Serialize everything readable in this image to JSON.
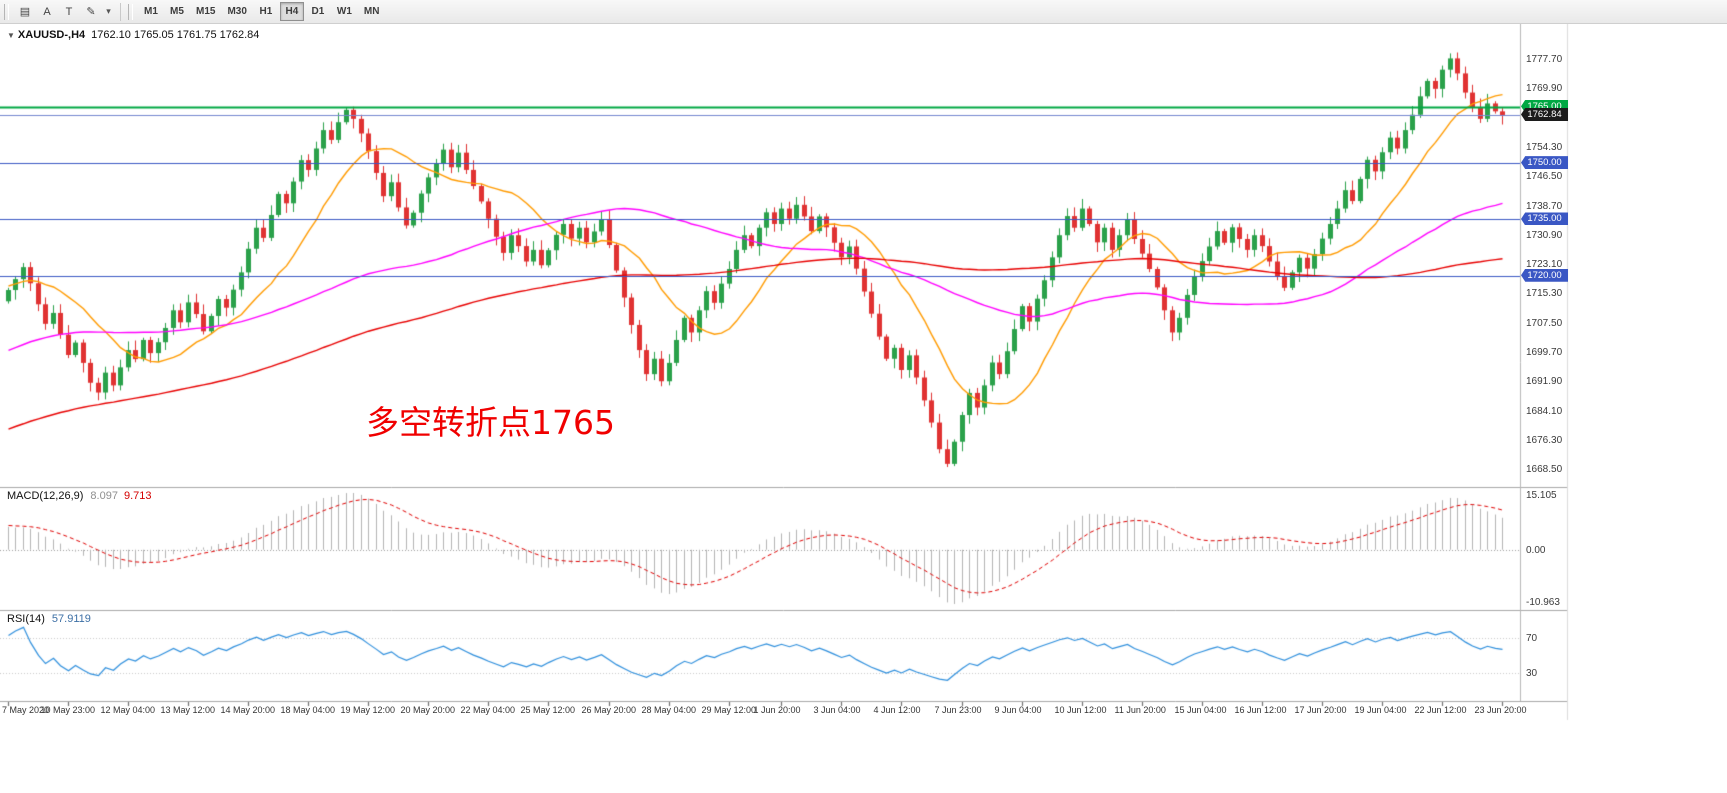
{
  "window": {
    "title": "XAUUSD-,H4"
  },
  "toolbar": {
    "icons": [
      {
        "name": "chart-window-icon",
        "glyph": "▤"
      },
      {
        "name": "text-tool-icon",
        "glyph": "A"
      },
      {
        "name": "label-tool-icon",
        "glyph": "T"
      },
      {
        "name": "draw-tool-icon",
        "glyph": "✎"
      },
      {
        "name": "dropdown-caret-icon",
        "glyph": "▾"
      }
    ],
    "timeframes": [
      {
        "label": "M1",
        "active": false
      },
      {
        "label": "M5",
        "active": false
      },
      {
        "label": "M15",
        "active": false
      },
      {
        "label": "M30",
        "active": false
      },
      {
        "label": "H1",
        "active": false
      },
      {
        "label": "H4",
        "active": true
      },
      {
        "label": "D1",
        "active": false
      },
      {
        "label": "W1",
        "active": false
      },
      {
        "label": "MN",
        "active": false
      }
    ]
  },
  "chart": {
    "header": {
      "triangle": "▼",
      "symbol": "XAUUSD-,H4",
      "ohlc": "1762.10 1765.05 1761.75 1762.84"
    },
    "annotation": "多空转折点1765",
    "y_axis_labels": [
      "1777.70",
      "1769.90",
      "1762.10",
      "1754.30",
      "1746.50",
      "1738.70",
      "1730.90",
      "1723.10",
      "1715.30",
      "1707.50",
      "1699.70",
      "1691.90",
      "1684.10",
      "1676.30",
      "1668.50"
    ],
    "price_badges": [
      {
        "label": "1765.00",
        "value": 1765.0,
        "color": "#00a843"
      },
      {
        "label": "1762.84",
        "value": 1762.84,
        "color": "#1c1c1c"
      },
      {
        "label": "1750.00",
        "value": 1750.0,
        "color": "#3a57c4"
      },
      {
        "label": "1735.00",
        "value": 1735.0,
        "color": "#3a57c4"
      },
      {
        "label": "1720.00",
        "value": 1720.0,
        "color": "#3a57c4"
      }
    ]
  },
  "macd_panel": {
    "title": "MACD(12,26,9)",
    "main_value": "8.097",
    "signal_value": "9.713",
    "axis_labels": [
      "15.105",
      "0.00",
      "-10.963"
    ]
  },
  "rsi_panel": {
    "title": "RSI(14)",
    "value": "57.9119",
    "axis_labels": [
      "70",
      "30"
    ]
  },
  "chart_data": {
    "type": "candlestick",
    "symbol": "XAUUSD",
    "timeframe": "H4",
    "display_ohlc": {
      "open": 1762.1,
      "high": 1765.05,
      "low": 1761.75,
      "close": 1762.84
    },
    "y_range": [
      1664,
      1786
    ],
    "closes": [
      1716.2,
      1719.1,
      1722.3,
      1718.0,
      1712.4,
      1707.2,
      1710.1,
      1704.3,
      1698.9,
      1702.2,
      1696.8,
      1691.5,
      1688.9,
      1694.2,
      1690.8,
      1695.6,
      1700.2,
      1697.8,
      1702.9,
      1699.4,
      1702.3,
      1706.1,
      1710.8,
      1707.6,
      1712.9,
      1709.8,
      1705.2,
      1709.3,
      1713.8,
      1711.5,
      1716.3,
      1720.9,
      1727.2,
      1732.8,
      1730.1,
      1736.2,
      1741.8,
      1739.3,
      1745.1,
      1750.8,
      1748.2,
      1753.9,
      1758.8,
      1756.2,
      1760.9,
      1764.2,
      1761.8,
      1757.9,
      1753.2,
      1747.4,
      1741.2,
      1744.9,
      1738.2,
      1733.4,
      1736.8,
      1741.9,
      1746.2,
      1749.8,
      1753.6,
      1748.9,
      1752.8,
      1748.2,
      1743.9,
      1739.8,
      1735.2,
      1730.4,
      1726.1,
      1730.8,
      1727.9,
      1723.8,
      1726.9,
      1722.8,
      1726.8,
      1730.9,
      1733.8,
      1729.9,
      1732.8,
      1728.9,
      1731.8,
      1734.9,
      1728.2,
      1721.4,
      1714.2,
      1706.9,
      1700.2,
      1693.8,
      1697.9,
      1691.9,
      1696.8,
      1702.9,
      1708.8,
      1704.9,
      1710.8,
      1715.9,
      1712.8,
      1717.9,
      1721.8,
      1726.9,
      1730.8,
      1727.9,
      1732.8,
      1736.9,
      1733.8,
      1737.9,
      1735.2,
      1738.9,
      1735.8,
      1731.9,
      1735.8,
      1732.9,
      1728.8,
      1724.9,
      1727.8,
      1721.9,
      1715.8,
      1709.9,
      1703.8,
      1697.9,
      1700.8,
      1694.9,
      1698.8,
      1692.9,
      1686.8,
      1680.9,
      1673.8,
      1669.9,
      1675.8,
      1682.9,
      1688.8,
      1684.9,
      1690.8,
      1696.9,
      1693.8,
      1699.9,
      1705.8,
      1711.9,
      1707.8,
      1713.9,
      1718.8,
      1724.9,
      1730.8,
      1735.9,
      1732.8,
      1737.9,
      1733.8,
      1728.9,
      1732.8,
      1726.9,
      1730.8,
      1734.9,
      1729.8,
      1725.9,
      1721.8,
      1716.9,
      1710.8,
      1704.9,
      1708.8,
      1714.9,
      1719.8,
      1723.9,
      1727.8,
      1731.9,
      1728.8,
      1732.9,
      1729.8,
      1726.9,
      1730.8,
      1727.9,
      1723.8,
      1719.9,
      1716.8,
      1720.9,
      1724.8,
      1721.9,
      1725.8,
      1729.9,
      1733.8,
      1737.9,
      1742.8,
      1739.9,
      1745.8,
      1750.9,
      1747.8,
      1752.9,
      1756.8,
      1753.9,
      1758.8,
      1762.9,
      1767.8,
      1771.9,
      1769.8,
      1774.9,
      1777.9,
      1773.9,
      1768.8,
      1764.9,
      1761.8,
      1765.9,
      1763.8,
      1762.84
    ],
    "horizontal_levels": [
      {
        "value": 1765.0,
        "color": "#00a843",
        "width": 2
      },
      {
        "value": 1762.84,
        "color": "#7486d0",
        "width": 1
      },
      {
        "value": 1750.0,
        "color": "#3a57c4",
        "width": 1
      },
      {
        "value": 1735.0,
        "color": "#3a57c4",
        "width": 1
      },
      {
        "value": 1720.0,
        "color": "#3a57c4",
        "width": 1
      }
    ],
    "moving_averages": [
      {
        "name": "fast",
        "period": 13,
        "color": "#ff9b00"
      },
      {
        "name": "mid",
        "period": 55,
        "color": "#ff00ff"
      },
      {
        "name": "slow",
        "period": 120,
        "color": "#e80000"
      }
    ],
    "macd": {
      "fast": 12,
      "slow": 26,
      "signal": 9,
      "last_main": 8.097,
      "last_signal": 9.713,
      "hist_color": "#b4b4b4",
      "signal_color": "#e00000"
    },
    "rsi": {
      "period": 14,
      "last": 57.9119,
      "levels": [
        70,
        30
      ],
      "color": "#2e8fdd"
    },
    "x_labels": [
      "7 May 2020",
      "10 May 23:00",
      "12 May 04:00",
      "13 May 12:00",
      "14 May 20:00",
      "18 May 04:00",
      "19 May 12:00",
      "20 May 20:00",
      "22 May 04:00",
      "25 May 12:00",
      "26 May 20:00",
      "28 May 04:00",
      "29 May 12:00",
      "1 Jun 20:00",
      "3 Jun 04:00",
      "4 Jun 12:00",
      "7 Jun 23:00",
      "9 Jun 04:00",
      "10 Jun 12:00",
      "11 Jun 20:00",
      "15 Jun 04:00",
      "16 Jun 12:00",
      "17 Jun 20:00",
      "19 Jun 04:00",
      "22 Jun 12:00",
      "23 Jun 20:00"
    ],
    "candle_up_color": "#2aa14a",
    "candle_down_color": "#e03232"
  }
}
